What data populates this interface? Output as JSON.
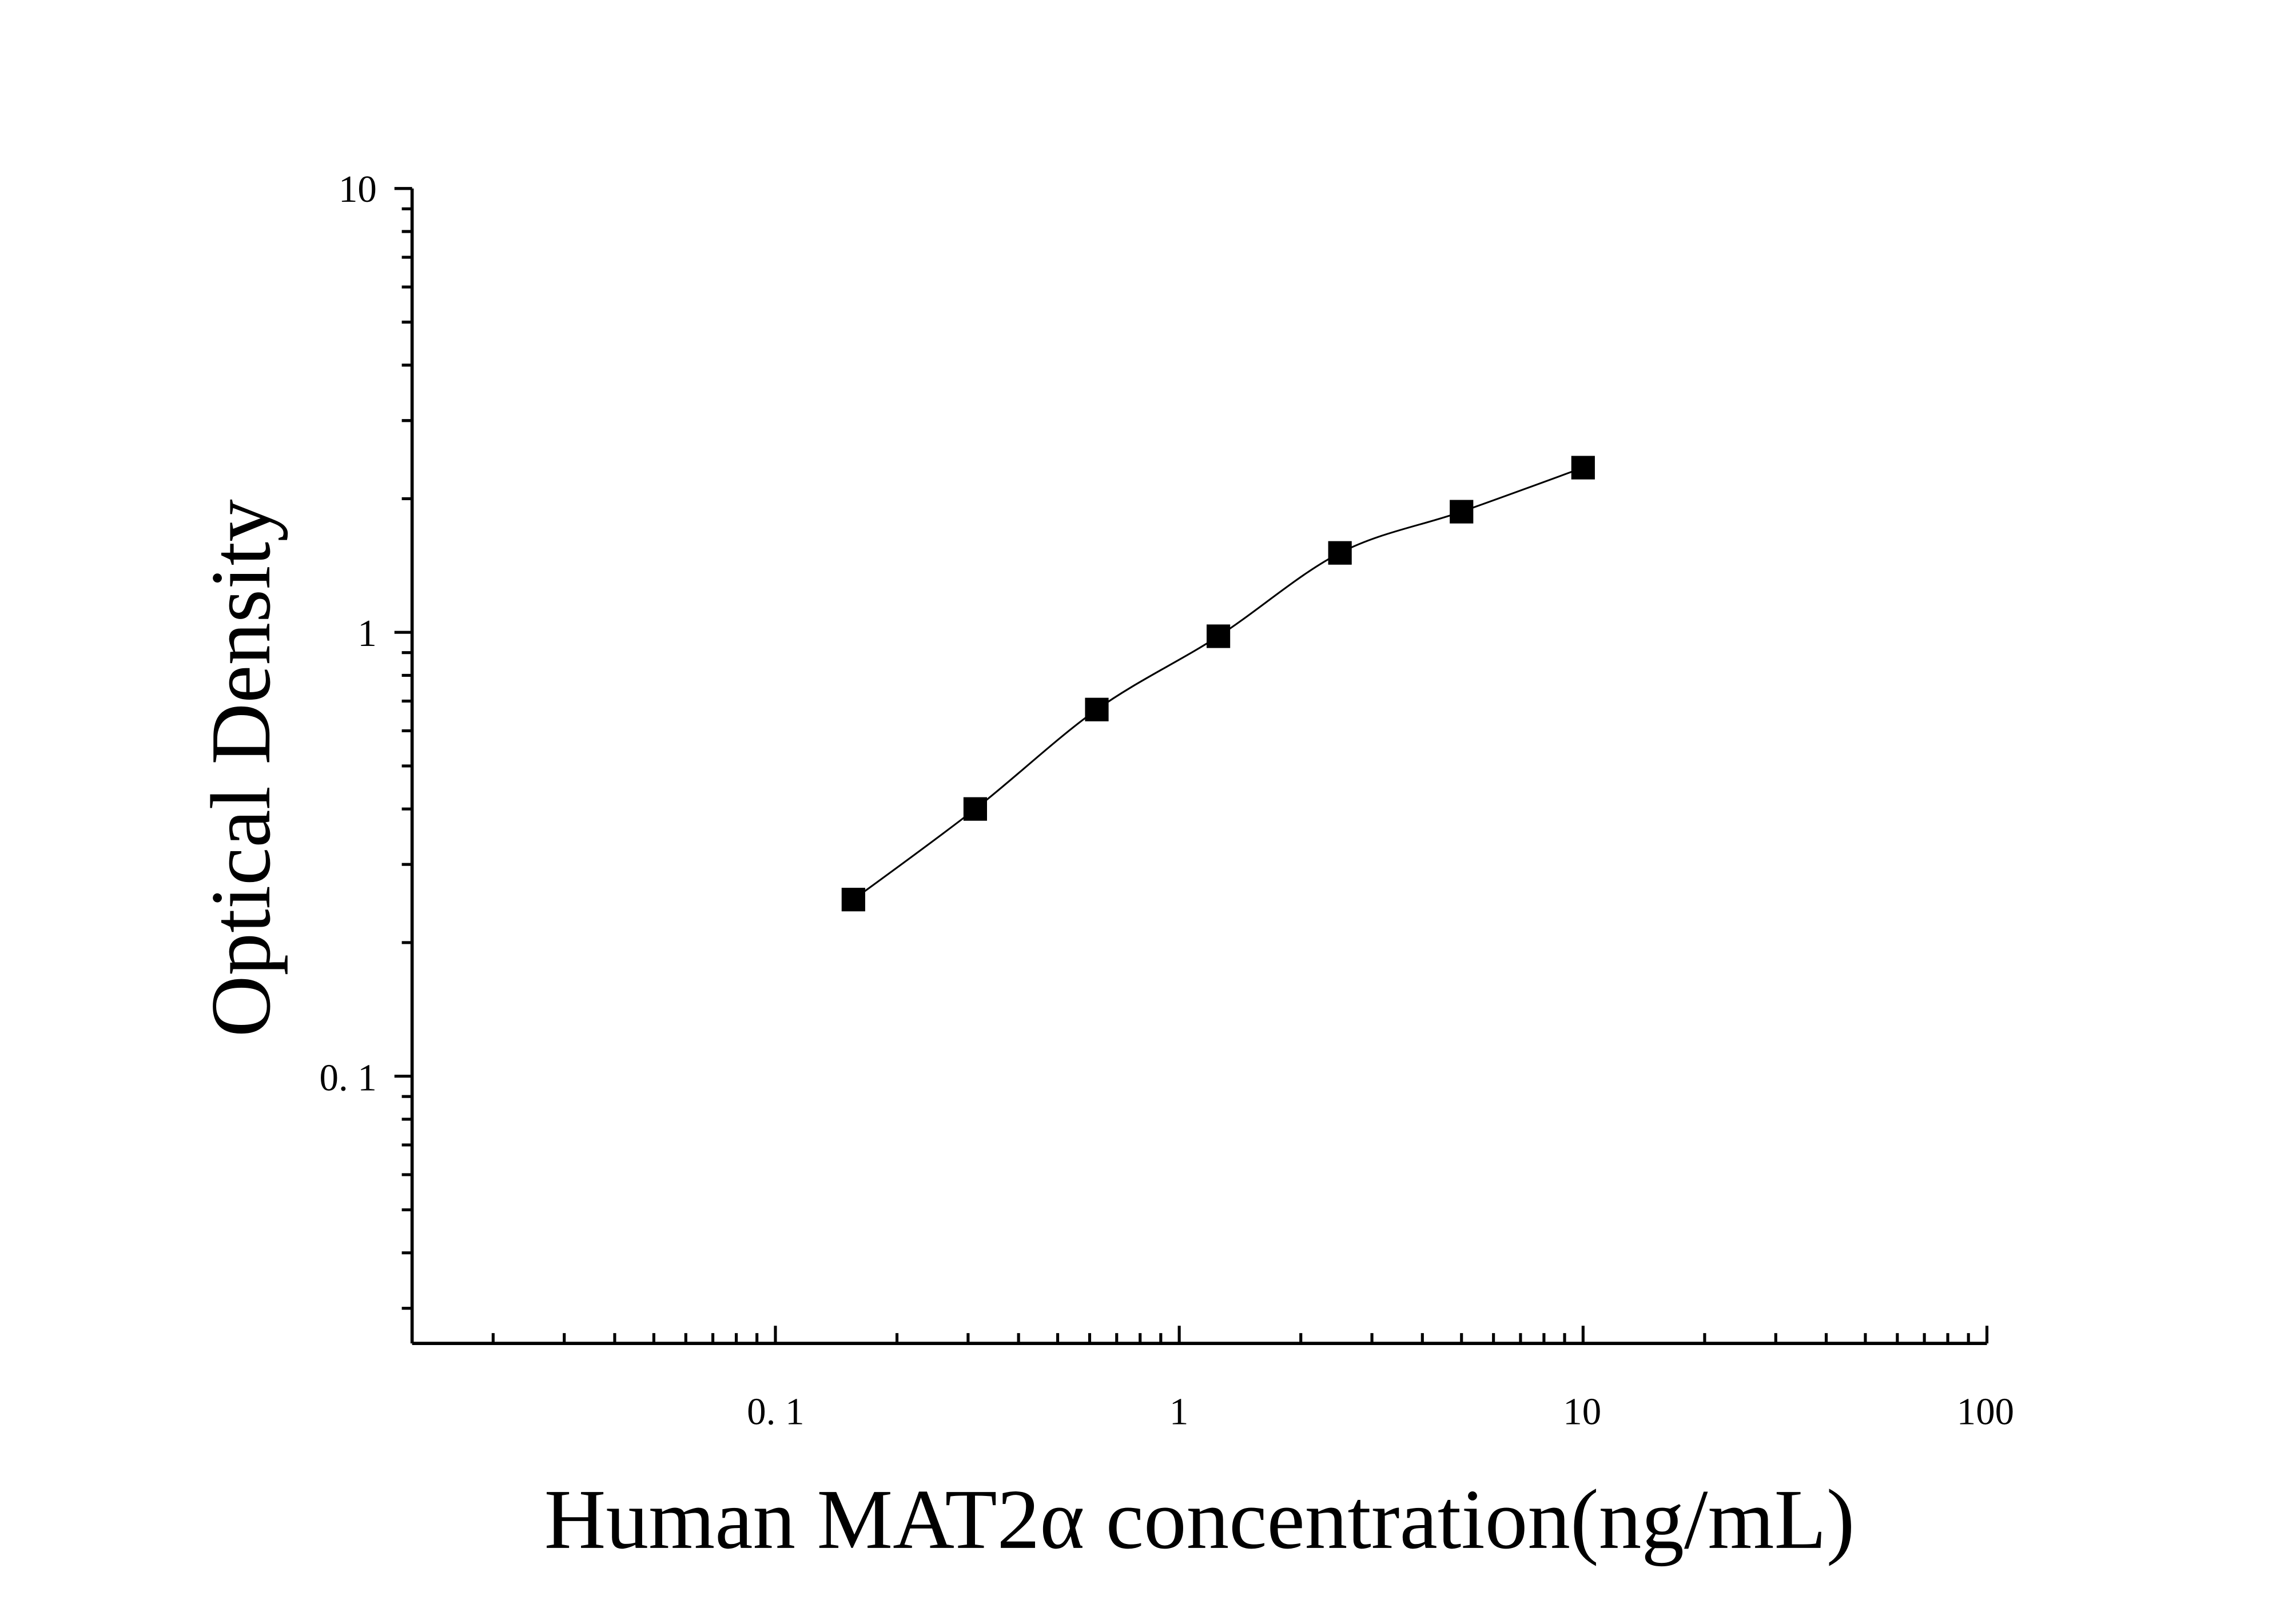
{
  "chart_data": {
    "type": "scatter",
    "title": "",
    "xlabel": "Human MAT2α concentration(ng/mL)",
    "ylabel": "Optical Density",
    "x_scale": "log",
    "y_scale": "log",
    "xlim": [
      0.0126,
      100
    ],
    "ylim": [
      0.025,
      10
    ],
    "x_ticks": [
      {
        "value": 0.1,
        "label": "0. 1"
      },
      {
        "value": 1,
        "label": "1"
      },
      {
        "value": 10,
        "label": "10"
      },
      {
        "value": 100,
        "label": "100"
      }
    ],
    "y_ticks": [
      {
        "value": 0.1,
        "label": "0. 1"
      },
      {
        "value": 1,
        "label": "1"
      },
      {
        "value": 10,
        "label": "10"
      }
    ],
    "grid": false,
    "marker": "square",
    "fit_line": true,
    "color": "#000000",
    "series": [
      {
        "x": [
          0.156,
          0.3125,
          0.625,
          1.25,
          2.5,
          5,
          10
        ],
        "y": [
          0.25,
          0.4,
          0.67,
          0.98,
          1.51,
          1.87,
          2.35
        ]
      }
    ]
  }
}
